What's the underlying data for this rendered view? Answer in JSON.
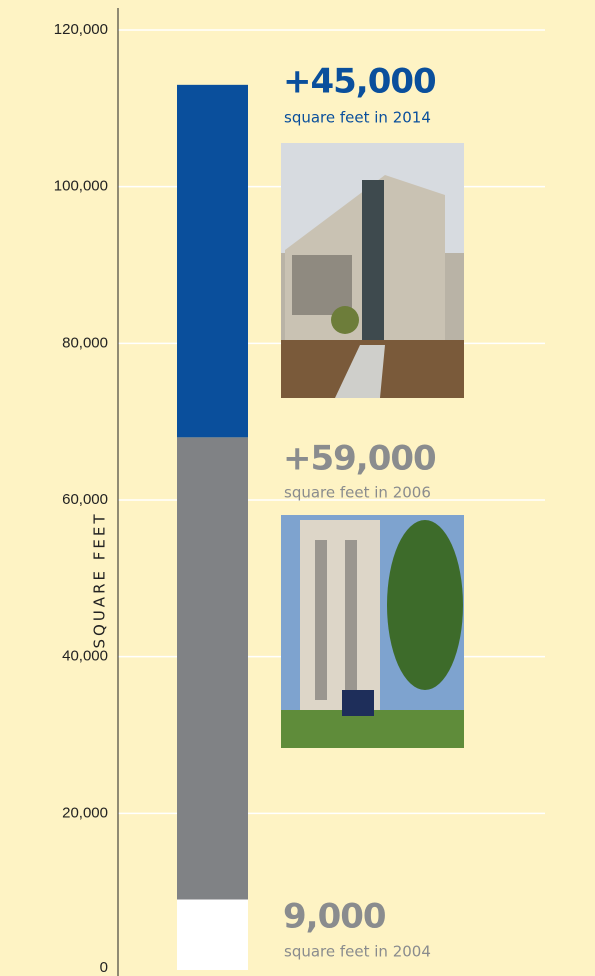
{
  "chart_data": {
    "type": "stacked_bar",
    "y_label": "SQUARE FEET",
    "ylim": [
      0,
      120000
    ],
    "yticks": [
      0,
      {
        "value": 20000,
        "label": "20,000"
      },
      {
        "value": 40000,
        "label": "40,000"
      },
      {
        "value": 60000,
        "label": "60,000"
      },
      {
        "value": 80000,
        "label": "80,000"
      },
      {
        "value": 100000,
        "label": "100,000"
      },
      {
        "value": 120000,
        "label": "120,000"
      }
    ],
    "grid": true,
    "segments": [
      {
        "value": 9000,
        "value_label": "9,000",
        "note": "square feet in 2004",
        "color": "#ffffff",
        "label_color": "#8a8c8e"
      },
      {
        "value": 59000,
        "value_label": "+59,000",
        "note": "square feet in 2006",
        "color": "#808285",
        "label_color": "#8a8c8e"
      },
      {
        "value": 45000,
        "value_label": "+45,000",
        "note": "square feet in 2014",
        "color": "#0a4f9c",
        "label_color": "#0a4f9c"
      }
    ]
  }
}
